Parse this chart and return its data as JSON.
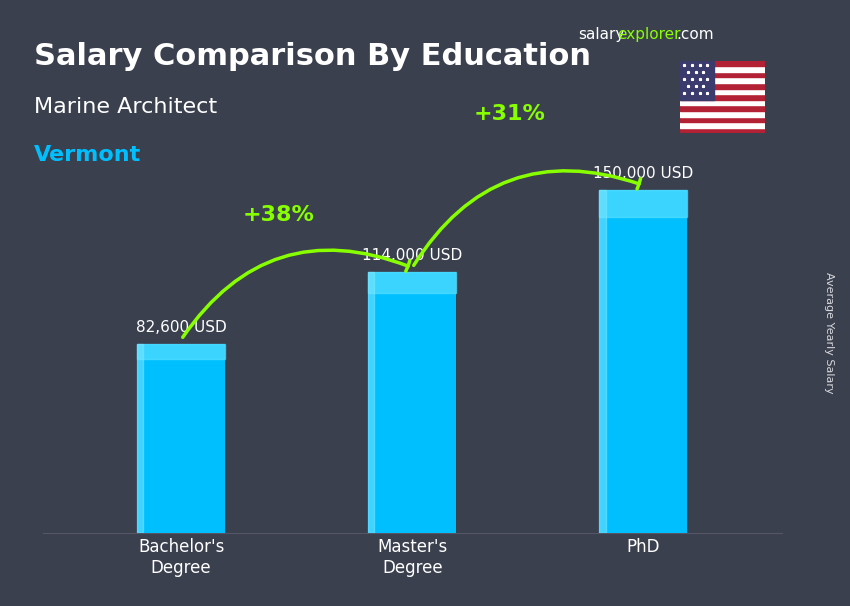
{
  "title": "Salary Comparison By Education",
  "subtitle": "Marine Architect",
  "location": "Vermont",
  "categories": [
    "Bachelor's\nDegree",
    "Master's\nDegree",
    "PhD"
  ],
  "values": [
    82600,
    114000,
    150000
  ],
  "value_labels": [
    "82,600 USD",
    "114,000 USD",
    "150,000 USD"
  ],
  "bar_color": "#00BFFF",
  "bar_color_top": "#00DFFF",
  "background_color": "#2a2a3a",
  "text_color": "#ffffff",
  "title_fontsize": 22,
  "subtitle_fontsize": 16,
  "location_color": "#00BFFF",
  "pct_changes": [
    "+38%",
    "+31%"
  ],
  "pct_arrow_from": [
    0,
    1
  ],
  "pct_arrow_to": [
    1,
    2
  ],
  "ylabel": "Average Yearly Salary",
  "brand_salary": "salary",
  "brand_explorer": "explorer",
  "brand_domain": ".com",
  "ylim": [
    0,
    180000
  ],
  "arrow_color": "#88FF00",
  "flag_colors": {
    "stripes_red": "#B22234",
    "stripes_white": "#FFFFFF",
    "canton": "#3C3B6E"
  }
}
